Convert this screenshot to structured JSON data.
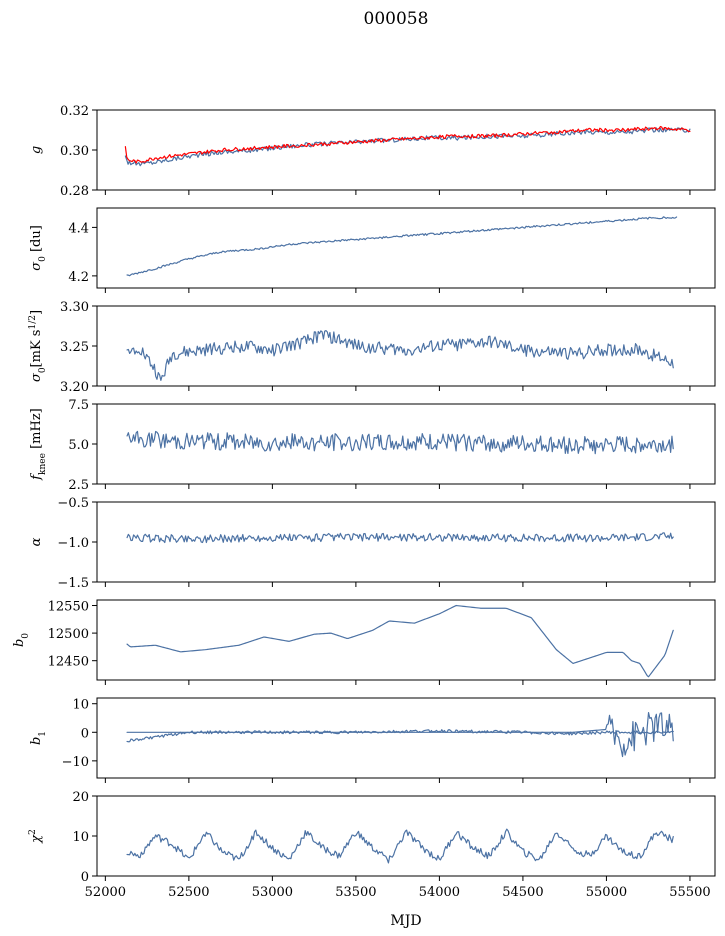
{
  "figure": {
    "title": "000058",
    "xlabel": "MJD",
    "xlim": [
      51950,
      55650
    ],
    "xticks": [
      52000,
      52500,
      53000,
      53500,
      54000,
      54500,
      55000,
      55500
    ]
  },
  "colors": {
    "series_blue": "#4c72a4",
    "series_red": "#ff0000"
  },
  "chart_data": [
    {
      "type": "line",
      "ylabel": "g",
      "ylim": [
        0.28,
        0.32
      ],
      "yticks": [
        "0.28",
        "0.30",
        "0.32"
      ],
      "ytick_values": [
        0.28,
        0.3,
        0.32
      ],
      "x": [
        52120,
        52130,
        52200,
        52300,
        52500,
        52700,
        52900,
        53100,
        53300,
        53500,
        53700,
        53900,
        54100,
        54300,
        54500,
        54700,
        54900,
        55100,
        55300,
        55500
      ],
      "series": [
        {
          "color": "series_blue",
          "noise": 0.0012,
          "values": [
            0.298,
            0.294,
            0.293,
            0.294,
            0.297,
            0.299,
            0.3,
            0.302,
            0.303,
            0.304,
            0.305,
            0.306,
            0.306,
            0.307,
            0.307,
            0.308,
            0.309,
            0.309,
            0.31,
            0.31
          ]
        },
        {
          "color": "series_red",
          "noise": 0.0009,
          "values": [
            0.302,
            0.295,
            0.294,
            0.296,
            0.298,
            0.3,
            0.301,
            0.302,
            0.303,
            0.304,
            0.305,
            0.306,
            0.307,
            0.307,
            0.308,
            0.309,
            0.31,
            0.31,
            0.311,
            0.31
          ]
        }
      ]
    },
    {
      "type": "line",
      "ylabel": "σ0 [du]",
      "ylim": [
        4.15,
        4.48
      ],
      "yticks": [
        "4.2",
        "4.4"
      ],
      "ytick_values": [
        4.2,
        4.4
      ],
      "x": [
        52130,
        52300,
        52500,
        52700,
        52900,
        53100,
        53300,
        53500,
        53700,
        53900,
        54100,
        54300,
        54500,
        54700,
        54900,
        55100,
        55300,
        55420
      ],
      "series": [
        {
          "color": "series_blue",
          "noise": 0.004,
          "values": [
            4.2,
            4.23,
            4.27,
            4.3,
            4.31,
            4.33,
            4.34,
            4.35,
            4.36,
            4.37,
            4.38,
            4.39,
            4.4,
            4.41,
            4.42,
            4.43,
            4.44,
            4.44
          ]
        }
      ]
    },
    {
      "type": "line",
      "ylabel": "σ0[mK s^1/2]",
      "ylim": [
        3.2,
        3.3
      ],
      "yticks": [
        "3.20",
        "3.25",
        "3.30"
      ],
      "ytick_values": [
        3.2,
        3.25,
        3.3
      ],
      "x": [
        52130,
        52200,
        52300,
        52330,
        52400,
        52600,
        52800,
        53000,
        53200,
        53300,
        53500,
        53800,
        54000,
        54300,
        54500,
        54800,
        55000,
        55200,
        55400
      ],
      "series": [
        {
          "color": "series_blue",
          "noise": 0.008,
          "values": [
            3.24,
            3.25,
            3.22,
            3.205,
            3.24,
            3.245,
            3.25,
            3.245,
            3.255,
            3.265,
            3.25,
            3.245,
            3.25,
            3.255,
            3.245,
            3.24,
            3.245,
            3.245,
            3.23
          ]
        }
      ]
    },
    {
      "type": "line",
      "ylabel": "fknee [mHz]",
      "ylim": [
        2.5,
        7.5
      ],
      "yticks": [
        "2.5",
        "5.0",
        "7.5"
      ],
      "ytick_values": [
        2.5,
        5.0,
        7.5
      ],
      "x": [
        52130,
        52500,
        53000,
        53500,
        54000,
        54500,
        55000,
        55400
      ],
      "series": [
        {
          "color": "series_blue",
          "noise": 0.55,
          "values": [
            5.3,
            5.2,
            5.1,
            5.1,
            5.1,
            5.0,
            4.9,
            5.0
          ]
        }
      ]
    },
    {
      "type": "line",
      "ylabel": "α",
      "ylim": [
        -1.5,
        -0.5
      ],
      "yticks": [
        "−1.5",
        "−1.0",
        "−0.5"
      ],
      "ytick_values": [
        -1.5,
        -1.0,
        -0.5
      ],
      "x": [
        52130,
        52500,
        53000,
        53500,
        54000,
        54500,
        55000,
        55400
      ],
      "series": [
        {
          "color": "series_blue",
          "noise": 0.05,
          "values": [
            -0.95,
            -0.96,
            -0.95,
            -0.94,
            -0.94,
            -0.95,
            -0.95,
            -0.93
          ]
        }
      ]
    },
    {
      "type": "line",
      "ylabel": "b0",
      "ylim": [
        12415,
        12560
      ],
      "yticks": [
        "12450",
        "12500",
        "12550"
      ],
      "ytick_values": [
        12450,
        12500,
        12550
      ],
      "x": [
        52130,
        52150,
        52300,
        52450,
        52600,
        52800,
        52950,
        53100,
        53250,
        53350,
        53450,
        53600,
        53700,
        53850,
        54000,
        54100,
        54250,
        54400,
        54550,
        54700,
        54800,
        54900,
        55000,
        55100,
        55150,
        55200,
        55250,
        55300,
        55350,
        55400
      ],
      "series": [
        {
          "color": "series_blue",
          "noise": 0.0,
          "values": [
            12480,
            12475,
            12478,
            12466,
            12470,
            12478,
            12493,
            12485,
            12498,
            12500,
            12490,
            12505,
            12522,
            12518,
            12535,
            12550,
            12545,
            12545,
            12528,
            12470,
            12445,
            12455,
            12465,
            12465,
            12450,
            12445,
            12420,
            12440,
            12460,
            12505
          ]
        }
      ]
    },
    {
      "type": "line",
      "ylabel": "b1",
      "ylim": [
        -16,
        12
      ],
      "yticks": [
        "−10",
        "0",
        "10"
      ],
      "ytick_values": [
        -10,
        0,
        10
      ],
      "x": [
        52130,
        52500,
        53000,
        53500,
        54000,
        54500,
        54800,
        55000,
        55100,
        55200,
        55300,
        55400
      ],
      "series": [
        {
          "color": "series_blue",
          "noise": 0.5,
          "values": [
            -3,
            0,
            0,
            0,
            0.5,
            0,
            -0.5,
            0,
            0,
            0,
            0,
            0
          ]
        },
        {
          "color": "series_blue",
          "noise": 6.0,
          "values": [
            0,
            0,
            0,
            0,
            0,
            0,
            0,
            1,
            -3,
            0,
            3,
            0
          ]
        }
      ]
    },
    {
      "type": "line",
      "ylabel": "χ2",
      "ylim": [
        0,
        20
      ],
      "yticks": [
        "0",
        "10",
        "20"
      ],
      "ytick_values": [
        0,
        10,
        20
      ],
      "x": [
        52130,
        52200,
        52300,
        52400,
        52500,
        52600,
        52700,
        52800,
        52900,
        53000,
        53100,
        53200,
        53300,
        53400,
        53500,
        53600,
        53700,
        53800,
        53900,
        54000,
        54100,
        54200,
        54300,
        54400,
        54500,
        54600,
        54700,
        54800,
        54900,
        55000,
        55100,
        55200,
        55300,
        55400
      ],
      "series": [
        {
          "color": "series_blue",
          "noise": 0.9,
          "values": [
            6,
            5,
            10,
            8,
            4,
            11,
            6,
            4,
            11,
            7,
            4,
            11,
            7,
            5,
            11,
            7,
            4,
            11,
            7,
            4,
            11,
            7,
            5,
            11,
            6,
            4,
            11,
            7,
            5,
            10,
            6,
            5,
            11,
            9
          ]
        }
      ]
    }
  ]
}
